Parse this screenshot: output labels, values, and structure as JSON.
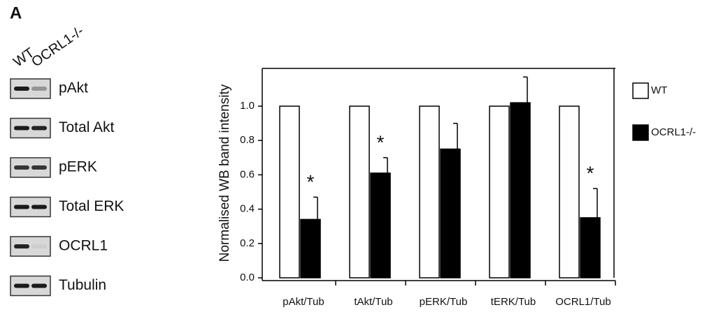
{
  "panel_label": "A",
  "lanes": [
    "WT",
    "OCRL1-/-"
  ],
  "blots": [
    "pAkt",
    "Total Akt",
    "pERK",
    "Total ERK",
    "OCRL1",
    "Tubulin"
  ],
  "chart_data": {
    "type": "bar",
    "y_label": "Normalised WB band intensity",
    "categories": [
      "pAkt/Tub",
      "tAkt/Tub",
      "pERK/Tub",
      "tERK/Tub",
      "OCRL1/Tub"
    ],
    "series": [
      {
        "name": "WT",
        "color": "#ffffff",
        "values": [
          1.0,
          1.0,
          1.0,
          1.0,
          1.0
        ]
      },
      {
        "name": "OCRL1-/-",
        "color": "#000000",
        "values": [
          0.34,
          0.61,
          0.75,
          1.02,
          0.35
        ],
        "errors": [
          0.13,
          0.09,
          0.15,
          0.15,
          0.17
        ],
        "significance": [
          "*",
          "*",
          null,
          null,
          "*"
        ]
      }
    ],
    "ylim": [
      0,
      1.22
    ],
    "yticks": [
      {
        "value": 0,
        "label": "0.0"
      },
      0.2,
      0.4,
      0.6,
      0.8,
      {
        "value": 1,
        "label": "1.0"
      }
    ],
    "legend": "right"
  }
}
